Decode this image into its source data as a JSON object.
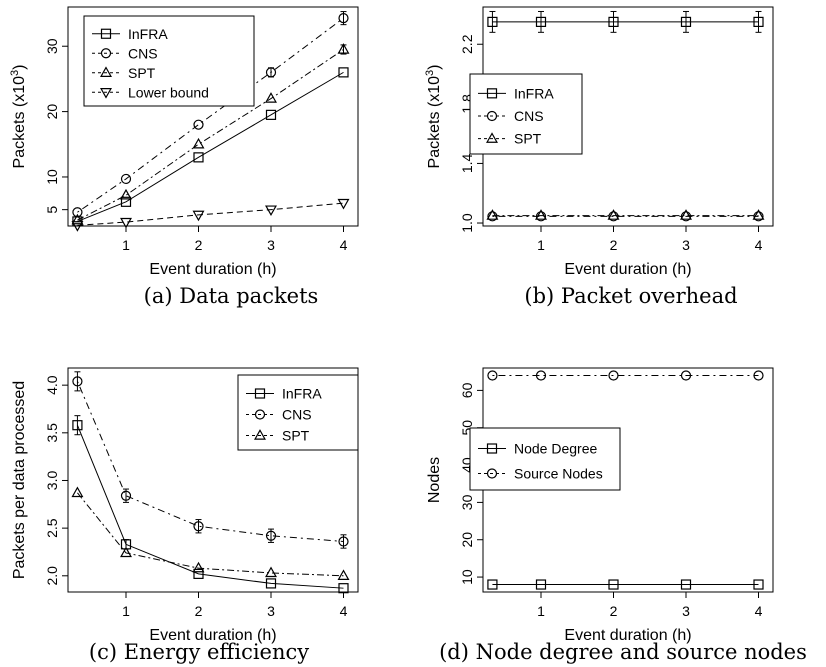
{
  "chart_data": [
    {
      "type": "line",
      "caption": "(a) Data packets",
      "xlabel": "Event duration (h)",
      "ylabel": "Packets (x10",
      "ylabel_sup": "3",
      "ylabel_close": ")",
      "x": [
        0.33,
        1,
        2,
        3,
        4
      ],
      "xticks": [
        1,
        2,
        3,
        4
      ],
      "yticks": [
        5,
        10,
        20,
        30
      ],
      "xlim": [
        0.2,
        4.2
      ],
      "ylim": [
        2.5,
        36
      ],
      "legend_position": "top-left",
      "series": [
        {
          "name": "InFRA",
          "marker": "square",
          "dash": "",
          "values": [
            3.2,
            6.2,
            13.0,
            19.5,
            26.0
          ],
          "errors": [
            0.3,
            0.3,
            0.4,
            0.4,
            0.5
          ]
        },
        {
          "name": "CNS",
          "marker": "circle",
          "dash": "2,4,7,4",
          "values": [
            4.6,
            9.7,
            18.0,
            26.0,
            34.3
          ],
          "errors": [
            0.4,
            0.4,
            0.5,
            0.7,
            1.0
          ]
        },
        {
          "name": "SPT",
          "marker": "triangle-up",
          "dash": "7,3,2,3",
          "values": [
            3.4,
            7.2,
            15.0,
            22.0,
            29.5
          ],
          "errors": [
            0.3,
            0.3,
            0.4,
            0.5,
            0.7
          ]
        },
        {
          "name": "Lower bound",
          "marker": "triangle-down",
          "dash": "6,4",
          "values": [
            2.6,
            3.1,
            4.2,
            5.0,
            6.0
          ],
          "errors": []
        }
      ]
    },
    {
      "type": "line",
      "caption": "(b) Packet overhead",
      "xlabel": "Event duration (h)",
      "ylabel": "Packets (x10",
      "ylabel_sup": "3",
      "ylabel_close": ")",
      "x": [
        0.33,
        1,
        2,
        3,
        4
      ],
      "xticks": [
        1,
        2,
        3,
        4
      ],
      "yticks": [
        1.0,
        1.4,
        1.8,
        2.2
      ],
      "ytick_labels": [
        "1.0",
        "1.4",
        "1.8",
        "2.2"
      ],
      "xlim": [
        0.2,
        4.2
      ],
      "ylim": [
        0.98,
        2.45
      ],
      "legend_position": "middle-left",
      "series": [
        {
          "name": "InFRA",
          "marker": "square",
          "dash": "",
          "values": [
            2.35,
            2.35,
            2.35,
            2.35,
            2.35
          ],
          "errors": [
            0.07,
            0.07,
            0.07,
            0.07,
            0.07
          ]
        },
        {
          "name": "CNS",
          "marker": "circle",
          "dash": "2,4,7,4",
          "values": [
            1.045,
            1.045,
            1.045,
            1.045,
            1.045
          ],
          "errors": [
            0.01,
            0.01,
            0.01,
            0.01,
            0.01
          ]
        },
        {
          "name": "SPT",
          "marker": "triangle-up",
          "dash": "7,3,2,3",
          "values": [
            1.05,
            1.05,
            1.05,
            1.05,
            1.05
          ],
          "errors": [
            0.01,
            0.01,
            0.01,
            0.01,
            0.01
          ]
        }
      ]
    },
    {
      "type": "line",
      "caption": "(c) Energy efficiency",
      "xlabel": "Event duration (h)",
      "ylabel": "Packets per data processed",
      "x": [
        0.33,
        1,
        2,
        3,
        4
      ],
      "xticks": [
        1,
        2,
        3,
        4
      ],
      "yticks": [
        2.0,
        2.5,
        3.0,
        3.5,
        4.0
      ],
      "ytick_labels": [
        "2.0",
        "2.5",
        "3.0",
        "3.5",
        "4.0"
      ],
      "xlim": [
        0.2,
        4.2
      ],
      "ylim": [
        1.83,
        4.18
      ],
      "legend_position": "top-right",
      "series": [
        {
          "name": "InFRA",
          "marker": "square",
          "dash": "",
          "values": [
            3.58,
            2.33,
            2.02,
            1.92,
            1.87
          ],
          "errors": [
            0.1,
            0.05,
            0.03,
            0.03,
            0.03
          ]
        },
        {
          "name": "CNS",
          "marker": "circle",
          "dash": "2,4,7,4",
          "values": [
            4.04,
            2.84,
            2.52,
            2.42,
            2.36
          ],
          "errors": [
            0.1,
            0.07,
            0.07,
            0.07,
            0.07
          ]
        },
        {
          "name": "SPT",
          "marker": "triangle-up",
          "dash": "7,3,2,3",
          "values": [
            2.87,
            2.24,
            2.08,
            2.03,
            2.0
          ],
          "errors": [
            0.04,
            0.03,
            0.02,
            0.02,
            0.02
          ]
        }
      ]
    },
    {
      "type": "line",
      "caption": "(d) Node degree and source nodes",
      "xlabel": "Event duration (h)",
      "ylabel": "Nodes",
      "x": [
        0.33,
        1,
        2,
        3,
        4
      ],
      "xticks": [
        1,
        2,
        3,
        4
      ],
      "yticks": [
        10,
        20,
        30,
        40,
        50,
        60
      ],
      "xlim": [
        0.2,
        4.2
      ],
      "ylim": [
        6,
        66
      ],
      "legend_position": "middle-left",
      "series": [
        {
          "name": "Node Degree",
          "marker": "square",
          "dash": "",
          "values": [
            8,
            8,
            8,
            8,
            8
          ],
          "errors": []
        },
        {
          "name": "Source Nodes",
          "marker": "circle",
          "dash": "2,4,7,4",
          "values": [
            64,
            64,
            64,
            64,
            64
          ],
          "errors": []
        }
      ]
    }
  ]
}
